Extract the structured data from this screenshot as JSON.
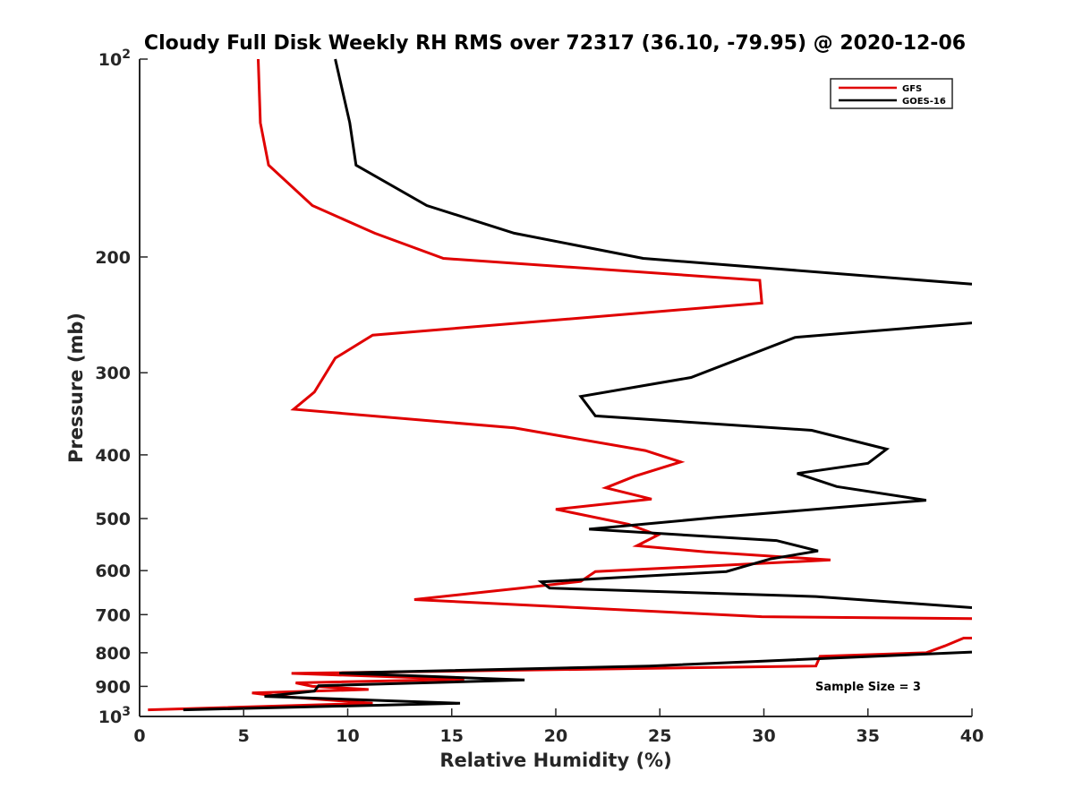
{
  "chart_data": {
    "type": "line",
    "title": "Cloudy Full Disk Weekly RH RMS over 72317 (36.10, -79.95) @ 2020-12-06",
    "xlabel": "Relative Humidity (%)",
    "ylabel": "Pressure (mb)",
    "xlim": [
      0,
      40
    ],
    "ylim": [
      100,
      1000
    ],
    "y_scale": "log",
    "y_reversed": true,
    "grid": false,
    "legend_position": "top-right",
    "x_ticks": [
      "0",
      "5",
      "10",
      "15",
      "20",
      "25",
      "30",
      "35",
      "40"
    ],
    "y_ticks": [
      {
        "value": 100,
        "label": "10",
        "sup": "2"
      },
      {
        "value": 200,
        "label": "200"
      },
      {
        "value": 300,
        "label": "300"
      },
      {
        "value": 400,
        "label": "400"
      },
      {
        "value": 500,
        "label": "500"
      },
      {
        "value": 600,
        "label": "600"
      },
      {
        "value": 700,
        "label": "700"
      },
      {
        "value": 800,
        "label": "800"
      },
      {
        "value": 900,
        "label": "900"
      },
      {
        "value": 1000,
        "label": "10",
        "sup": "3"
      }
    ],
    "annotation": "Sample Size = 3",
    "series": [
      {
        "name": "GFS",
        "color": "#e00000",
        "points": [
          [
            5.7,
            100
          ],
          [
            5.8,
            125
          ],
          [
            6.2,
            145
          ],
          [
            8.3,
            167
          ],
          [
            11.3,
            184
          ],
          [
            14.6,
            201
          ],
          [
            29.8,
            217
          ],
          [
            29.9,
            235
          ],
          [
            11.2,
            263
          ],
          [
            9.4,
            285
          ],
          [
            8.4,
            321
          ],
          [
            7.4,
            341
          ],
          [
            18.0,
            364
          ],
          [
            24.3,
            394
          ],
          [
            26.0,
            410
          ],
          [
            23.8,
            431
          ],
          [
            22.4,
            449
          ],
          [
            24.6,
            467
          ],
          [
            20.0,
            484
          ],
          [
            23.5,
            510
          ],
          [
            24.9,
            530
          ],
          [
            23.9,
            550
          ],
          [
            27.2,
            562
          ],
          [
            33.2,
            578
          ],
          [
            21.9,
            602
          ],
          [
            21.2,
            623
          ],
          [
            18.3,
            638
          ],
          [
            13.2,
            664
          ],
          [
            29.9,
            705
          ],
          [
            40.0,
            710
          ]
        ],
        "segments_after_gap": [
          [
            40.0,
            760
          ],
          [
            39.6,
            760
          ],
          [
            38.7,
            781
          ],
          [
            37.8,
            800
          ],
          [
            32.7,
            810
          ],
          [
            32.5,
            838
          ],
          [
            7.3,
            860
          ],
          [
            15.6,
            878
          ],
          [
            7.5,
            889
          ],
          [
            8.3,
            900
          ],
          [
            11.0,
            910
          ],
          [
            5.4,
            921
          ],
          [
            6.8,
            932
          ],
          [
            11.2,
            955
          ],
          [
            0.4,
            977
          ]
        ]
      },
      {
        "name": "GOES-16",
        "color": "#000000",
        "points": [
          [
            9.4,
            100
          ],
          [
            10.1,
            125
          ],
          [
            10.4,
            145
          ],
          [
            13.8,
            167
          ],
          [
            18.0,
            184
          ],
          [
            24.2,
            201
          ],
          [
            40.0,
            220
          ]
        ],
        "segments_after_gap": [
          [
            40.0,
            252
          ],
          [
            31.5,
            265
          ],
          [
            26.5,
            305
          ],
          [
            21.2,
            326
          ],
          [
            21.9,
            349
          ],
          [
            32.3,
            367
          ],
          [
            35.9,
            392
          ],
          [
            35.0,
            412
          ],
          [
            31.6,
            427
          ],
          [
            33.5,
            447
          ],
          [
            37.8,
            469
          ],
          [
            27.7,
            498
          ],
          [
            21.6,
            519
          ],
          [
            30.6,
            540
          ],
          [
            32.6,
            560
          ],
          [
            30.3,
            576
          ],
          [
            28.2,
            602
          ],
          [
            19.3,
            624
          ],
          [
            19.7,
            638
          ],
          [
            32.5,
            657
          ],
          [
            40.0,
            683
          ]
        ],
        "segments_after_gap_2": [
          [
            40.0,
            798
          ],
          [
            24.5,
            838
          ],
          [
            9.6,
            859
          ],
          [
            18.5,
            880
          ],
          [
            8.6,
            898
          ],
          [
            8.4,
            915
          ],
          [
            6.0,
            932
          ],
          [
            15.4,
            955
          ],
          [
            2.1,
            977
          ]
        ]
      }
    ]
  }
}
